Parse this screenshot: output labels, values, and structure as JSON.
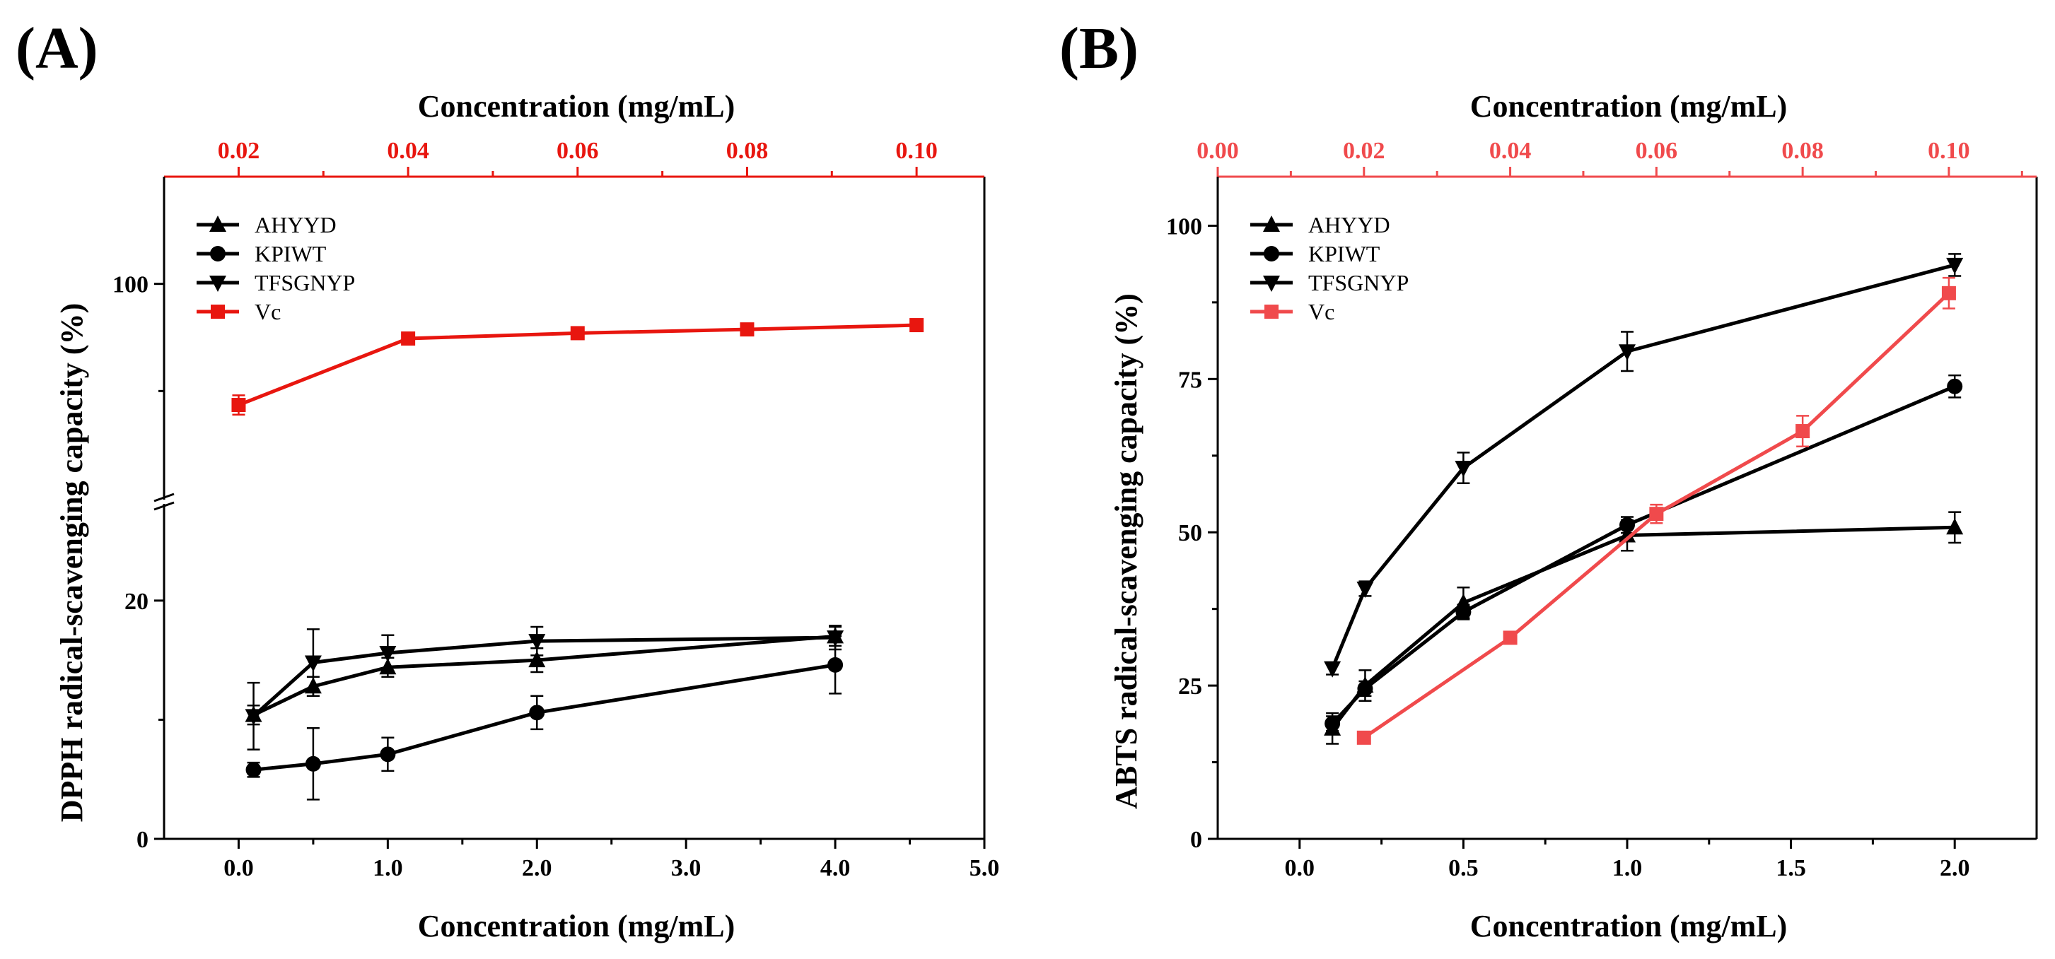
{
  "panels": [
    {
      "label": "(A)",
      "top_xlabel": "Concentration (mg/mL)",
      "xlabel": "Concentration (mg/mL)",
      "ylabel": "DPPH radical-scavenging capacity (%)"
    },
    {
      "label": "(B)",
      "top_xlabel": "Concentration (mg/mL)",
      "xlabel": "Concentration (mg/mL)",
      "ylabel": "ABTS radical-scavenging capacity (%)"
    }
  ],
  "colors": {
    "black": "#000000",
    "red_a": "#e8160f",
    "red_b": "#f04a4c"
  },
  "chart_data": [
    {
      "type": "line",
      "title": "(A)",
      "xlabel": "Concentration (mg/mL)",
      "x2label": "Concentration (mg/mL)",
      "ylabel": "DPPH radical-scavenging capacity (%)",
      "xlim": [
        -0.5,
        5.0
      ],
      "x2lim": [
        0.0112,
        0.108
      ],
      "ylim_lower": [
        0,
        28
      ],
      "ylim_upper": [
        60,
        120
      ],
      "y_break": true,
      "xticks": [
        "0.0",
        "1.0",
        "2.0",
        "3.0",
        "4.0",
        "5.0"
      ],
      "x2ticks": [
        "0.02",
        "0.04",
        "0.06",
        "0.08",
        "0.10"
      ],
      "yticks": [
        "0",
        "20",
        "100"
      ],
      "legend": [
        "AHYYD",
        "KPIWT",
        "TFSGNYP",
        "Vc"
      ],
      "legend_position": "top-left",
      "series": [
        {
          "name": "AHYYD",
          "axis": "bottom",
          "marker": "triangle-up",
          "color": "#000000",
          "x": [
            0.1,
            0.5,
            1.0,
            2.0,
            4.0
          ],
          "y": [
            10.4,
            12.8,
            14.4,
            15.0,
            17.0
          ],
          "err": [
            0.8,
            0.8,
            0.8,
            1.0,
            0.8
          ]
        },
        {
          "name": "KPIWT",
          "axis": "bottom",
          "marker": "circle",
          "color": "#000000",
          "x": [
            0.1,
            0.5,
            1.0,
            2.0,
            4.0
          ],
          "y": [
            5.8,
            6.3,
            7.1,
            10.6,
            14.6
          ],
          "err": [
            0.6,
            3.0,
            1.4,
            1.4,
            2.4
          ]
        },
        {
          "name": "TFSGNYP",
          "axis": "bottom",
          "marker": "triangle-down",
          "color": "#000000",
          "x": [
            0.1,
            0.5,
            1.0,
            2.0,
            4.0
          ],
          "y": [
            10.3,
            14.8,
            15.6,
            16.6,
            16.9
          ],
          "err": [
            2.8,
            2.8,
            1.5,
            1.2,
            1.0
          ]
        },
        {
          "name": "Vc",
          "axis": "top",
          "marker": "square",
          "color": "#e8160f",
          "x": [
            0.02,
            0.04,
            0.06,
            0.08,
            0.1
          ],
          "y": [
            77.4,
            89.8,
            90.8,
            91.5,
            92.3
          ],
          "err": [
            1.8,
            0.8,
            0.8,
            0.8,
            0.8
          ]
        }
      ]
    },
    {
      "type": "line",
      "title": "(B)",
      "xlabel": "Concentration (mg/mL)",
      "x2label": "Concentration (mg/mL)",
      "ylabel": "ABTS radical-scavenging capacity (%)",
      "xlim": [
        -0.25,
        2.25
      ],
      "x2lim": [
        0.0,
        0.112
      ],
      "ylim": [
        0,
        108
      ],
      "xticks": [
        "0.0",
        "0.5",
        "1.0",
        "1.5",
        "2.0"
      ],
      "x2ticks": [
        "0.00",
        "0.02",
        "0.04",
        "0.06",
        "0.08",
        "0.10"
      ],
      "yticks": [
        "0",
        "25",
        "50",
        "75",
        "100"
      ],
      "legend": [
        "AHYYD",
        "KPIWT",
        "TFSGNYP",
        "Vc"
      ],
      "legend_position": "top-left",
      "series": [
        {
          "name": "AHYYD",
          "axis": "bottom",
          "marker": "triangle-up",
          "color": "#000000",
          "x": [
            0.1,
            0.2,
            0.5,
            1.0,
            2.0
          ],
          "y": [
            18.0,
            25.0,
            38.5,
            49.5,
            50.8
          ],
          "err": [
            2.5,
            2.5,
            2.5,
            2.5,
            2.5
          ]
        },
        {
          "name": "KPIWT",
          "axis": "bottom",
          "marker": "circle",
          "color": "#000000",
          "x": [
            0.1,
            0.2,
            0.5,
            1.0,
            2.0
          ],
          "y": [
            18.8,
            24.5,
            37.0,
            51.2,
            73.8
          ],
          "err": [
            1.2,
            1.2,
            1.2,
            1.3,
            1.8
          ]
        },
        {
          "name": "TFSGNYP",
          "axis": "bottom",
          "marker": "triangle-down",
          "color": "#000000",
          "x": [
            0.1,
            0.2,
            0.5,
            1.0,
            2.0
          ],
          "y": [
            27.8,
            40.8,
            60.5,
            79.5,
            93.6
          ],
          "err": [
            1.0,
            1.2,
            2.5,
            3.2,
            1.8
          ]
        },
        {
          "name": "Vc",
          "axis": "top",
          "marker": "square",
          "color": "#f04a4c",
          "x": [
            0.02,
            0.04,
            0.06,
            0.08,
            0.1
          ],
          "y": [
            16.5,
            32.8,
            53.0,
            66.5,
            89.0
          ],
          "err": [
            0.6,
            0.8,
            1.5,
            2.5,
            2.5
          ]
        }
      ]
    }
  ]
}
